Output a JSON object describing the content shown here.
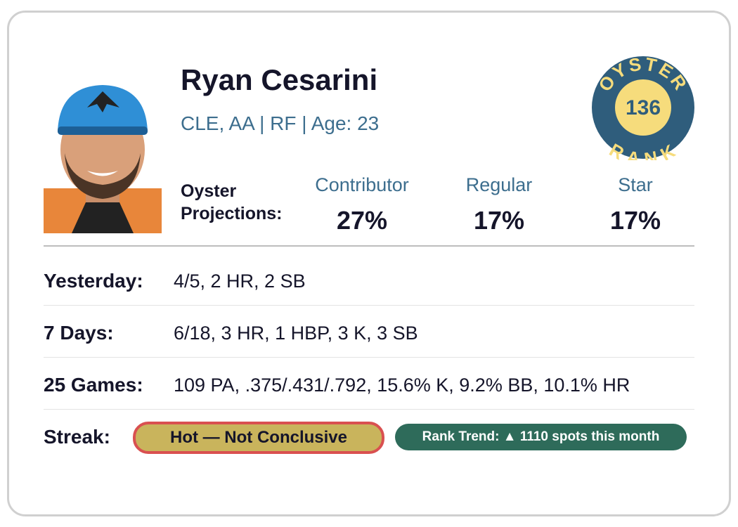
{
  "player": {
    "name": "Ryan Cesarini",
    "info": "CLE, AA | RF | Age: 23"
  },
  "badge": {
    "top": "OYSTER",
    "rank": "136",
    "bottom": "RANK"
  },
  "projections": {
    "label_line1": "Oyster",
    "label_line2": "Projections:",
    "columns": [
      {
        "label": "Contributor",
        "value": "27%"
      },
      {
        "label": "Regular",
        "value": "17%"
      },
      {
        "label": "Star",
        "value": "17%"
      }
    ]
  },
  "stats": [
    {
      "label": "Yesterday:",
      "value": "4/5, 2 HR, 2 SB"
    },
    {
      "label": "7 Days:",
      "value": "6/18, 3 HR, 1 HBP, 3 K, 3 SB"
    },
    {
      "label": "25 Games:",
      "value": "109 PA, .375/.431/.792, 15.6% K, 9.2% BB, 10.1% HR"
    }
  ],
  "streak": {
    "label": "Streak:",
    "status": "Hot — Not Conclusive",
    "rank_trend": "Rank Trend: ▲ 1110 spots this month"
  }
}
